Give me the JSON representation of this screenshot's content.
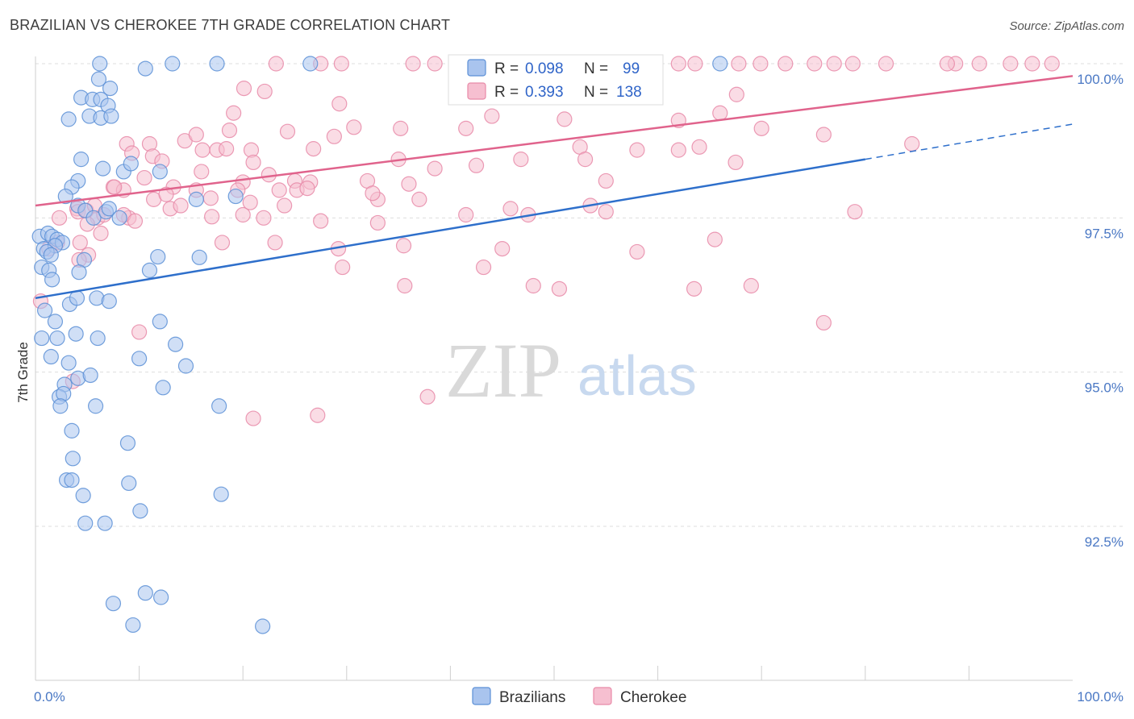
{
  "title": "BRAZILIAN VS CHEROKEE 7TH GRADE CORRELATION CHART",
  "source": "Source: ZipAtlas.com",
  "watermark": {
    "zip": "ZIP",
    "atlas": "atlas"
  },
  "colors": {
    "brazilians_fill": "#a9c4ee",
    "brazilians_stroke": "#5b8fd6",
    "brazilians_line": "#2e6fcb",
    "cherokee_fill": "#f6bfd0",
    "cherokee_stroke": "#e88aa8",
    "cherokee_line": "#e0638c",
    "grid": "#dddddd",
    "tick_text": "#4a78c4"
  },
  "chart_data": {
    "type": "scatter",
    "title": "BRAZILIAN VS CHEROKEE 7TH GRADE CORRELATION CHART",
    "xlabel": "",
    "ylabel": "7th Grade",
    "xlim": [
      0,
      100
    ],
    "ylim": [
      90.0,
      100.3
    ],
    "x_tick_labels": [
      {
        "value": 0,
        "label": "0.0%"
      },
      {
        "value": 100,
        "label": "100.0%"
      }
    ],
    "y_tick_labels": [
      {
        "value": 100.0,
        "label": "100.0%"
      },
      {
        "value": 97.5,
        "label": "97.5%"
      },
      {
        "value": 95.0,
        "label": "95.0%"
      },
      {
        "value": 92.5,
        "label": "92.5%"
      }
    ],
    "grid": true,
    "legend_position": "top-center",
    "legend": [
      {
        "name": "Brazilians",
        "r_label": "R =",
        "r_value": "0.098",
        "n_label": "N =",
        "n_value": "99"
      },
      {
        "name": "Cherokee",
        "r_label": "R =",
        "r_value": "0.393",
        "n_label": "N =",
        "n_value": "138"
      }
    ],
    "series": [
      {
        "name": "Brazilians",
        "trend": {
          "x0": 0,
          "y0": 96.2,
          "x1": 80,
          "y1": 98.45,
          "dashed_to_x": 100,
          "dashed_to_y": 99.02
        },
        "points": [
          [
            6.2,
            100
          ],
          [
            10.6,
            99.92
          ],
          [
            13.2,
            100
          ],
          [
            17.5,
            100
          ],
          [
            26.5,
            100
          ],
          [
            66,
            100
          ],
          [
            6.1,
            99.75
          ],
          [
            7.2,
            99.6
          ],
          [
            4.4,
            99.45
          ],
          [
            5.5,
            99.42
          ],
          [
            6.3,
            99.42
          ],
          [
            7.0,
            99.32
          ],
          [
            3.2,
            99.1
          ],
          [
            5.2,
            99.15
          ],
          [
            6.3,
            99.12
          ],
          [
            7.3,
            99.15
          ],
          [
            4.4,
            98.45
          ],
          [
            6.5,
            98.3
          ],
          [
            8.5,
            98.25
          ],
          [
            9.2,
            98.38
          ],
          [
            12.0,
            98.25
          ],
          [
            4.1,
            98.1
          ],
          [
            3.5,
            98.0
          ],
          [
            2.9,
            97.85
          ],
          [
            4.1,
            97.7
          ],
          [
            4.8,
            97.62
          ],
          [
            5.6,
            97.5
          ],
          [
            6.8,
            97.6
          ],
          [
            7.1,
            97.65
          ],
          [
            8.1,
            97.5
          ],
          [
            15.5,
            97.8
          ],
          [
            19.3,
            97.85
          ],
          [
            0.4,
            97.2
          ],
          [
            1.2,
            97.25
          ],
          [
            1.6,
            97.2
          ],
          [
            2.1,
            97.15
          ],
          [
            2.6,
            97.1
          ],
          [
            0.8,
            97.0
          ],
          [
            1.9,
            97.05
          ],
          [
            1.1,
            96.95
          ],
          [
            1.5,
            96.9
          ],
          [
            4.7,
            96.82
          ],
          [
            11.8,
            96.87
          ],
          [
            15.8,
            96.86
          ],
          [
            0.6,
            96.7
          ],
          [
            1.3,
            96.65
          ],
          [
            1.6,
            96.5
          ],
          [
            4.2,
            96.62
          ],
          [
            11.0,
            96.65
          ],
          [
            3.3,
            96.1
          ],
          [
            4.0,
            96.2
          ],
          [
            5.9,
            96.2
          ],
          [
            7.1,
            96.15
          ],
          [
            0.9,
            96.0
          ],
          [
            1.9,
            95.82
          ],
          [
            12.0,
            95.82
          ],
          [
            0.6,
            95.55
          ],
          [
            2.1,
            95.55
          ],
          [
            3.9,
            95.62
          ],
          [
            6.0,
            95.55
          ],
          [
            13.5,
            95.45
          ],
          [
            1.5,
            95.25
          ],
          [
            3.2,
            95.15
          ],
          [
            10.0,
            95.22
          ],
          [
            14.5,
            95.1
          ],
          [
            2.8,
            94.8
          ],
          [
            4.1,
            94.9
          ],
          [
            5.3,
            94.95
          ],
          [
            12.3,
            94.75
          ],
          [
            2.3,
            94.6
          ],
          [
            2.7,
            94.65
          ],
          [
            2.4,
            94.45
          ],
          [
            5.8,
            94.45
          ],
          [
            17.7,
            94.45
          ],
          [
            3.5,
            94.05
          ],
          [
            8.9,
            93.85
          ],
          [
            3.6,
            93.6
          ],
          [
            3.0,
            93.25
          ],
          [
            3.5,
            93.25
          ],
          [
            9.0,
            93.2
          ],
          [
            4.6,
            93.0
          ],
          [
            17.9,
            93.02
          ],
          [
            10.1,
            92.75
          ],
          [
            4.8,
            92.55
          ],
          [
            6.7,
            92.55
          ],
          [
            10.6,
            91.42
          ],
          [
            12.1,
            91.35
          ],
          [
            7.5,
            91.25
          ],
          [
            9.4,
            90.9
          ],
          [
            21.9,
            90.88
          ]
        ]
      },
      {
        "name": "Cherokee",
        "trend": {
          "x0": 0,
          "y0": 97.7,
          "x1": 100,
          "y1": 99.8
        },
        "points": [
          [
            23.2,
            100
          ],
          [
            27.5,
            100
          ],
          [
            29.5,
            100
          ],
          [
            36.4,
            100
          ],
          [
            38.5,
            100
          ],
          [
            43.7,
            100
          ],
          [
            48.8,
            100
          ],
          [
            51.2,
            100
          ],
          [
            55.6,
            100
          ],
          [
            59.0,
            100
          ],
          [
            62.0,
            100
          ],
          [
            63.6,
            100
          ],
          [
            67.8,
            100
          ],
          [
            69.9,
            100
          ],
          [
            72.3,
            100
          ],
          [
            75.1,
            100
          ],
          [
            77.0,
            100
          ],
          [
            82.0,
            100
          ],
          [
            88.7,
            100
          ],
          [
            91.0,
            100
          ],
          [
            94.0,
            100
          ],
          [
            96.1,
            100
          ],
          [
            98.0,
            100
          ],
          [
            78.8,
            100
          ],
          [
            44.0,
            100
          ],
          [
            87.9,
            100
          ],
          [
            20.1,
            99.6
          ],
          [
            22.1,
            99.55
          ],
          [
            67.6,
            99.5
          ],
          [
            29.3,
            99.35
          ],
          [
            19.1,
            99.2
          ],
          [
            44.0,
            99.15
          ],
          [
            51.0,
            99.1
          ],
          [
            66.0,
            99.2
          ],
          [
            62.0,
            99.08
          ],
          [
            70.0,
            98.95
          ],
          [
            24.3,
            98.9
          ],
          [
            30.7,
            98.97
          ],
          [
            35.2,
            98.95
          ],
          [
            41.5,
            98.95
          ],
          [
            18.7,
            98.92
          ],
          [
            76.0,
            98.85
          ],
          [
            84.5,
            98.7
          ],
          [
            52.5,
            98.65
          ],
          [
            64.0,
            98.65
          ],
          [
            8.8,
            98.7
          ],
          [
            11.0,
            98.7
          ],
          [
            14.4,
            98.75
          ],
          [
            15.5,
            98.85
          ],
          [
            16.1,
            98.6
          ],
          [
            17.5,
            98.6
          ],
          [
            18.4,
            98.62
          ],
          [
            20.8,
            98.6
          ],
          [
            26.8,
            98.62
          ],
          [
            28.8,
            98.82
          ],
          [
            35.0,
            98.45
          ],
          [
            38.5,
            98.3
          ],
          [
            42.5,
            98.35
          ],
          [
            46.8,
            98.45
          ],
          [
            53.0,
            98.45
          ],
          [
            58.0,
            98.6
          ],
          [
            62.0,
            98.6
          ],
          [
            67.5,
            98.4
          ],
          [
            9.3,
            98.55
          ],
          [
            11.3,
            98.5
          ],
          [
            12.2,
            98.42
          ],
          [
            16.0,
            98.25
          ],
          [
            21.0,
            98.4
          ],
          [
            22.5,
            98.2
          ],
          [
            25.0,
            98.1
          ],
          [
            26.5,
            98.08
          ],
          [
            32.0,
            98.1
          ],
          [
            33.0,
            97.8
          ],
          [
            36.0,
            98.05
          ],
          [
            55.0,
            98.1
          ],
          [
            7.5,
            98.0
          ],
          [
            8.5,
            97.95
          ],
          [
            10.5,
            98.15
          ],
          [
            13.3,
            98.0
          ],
          [
            15.5,
            97.95
          ],
          [
            20.0,
            98.08
          ],
          [
            23.5,
            97.95
          ],
          [
            25.2,
            97.95
          ],
          [
            26.2,
            97.98
          ],
          [
            4.0,
            97.65
          ],
          [
            2.3,
            97.5
          ],
          [
            4.1,
            97.6
          ],
          [
            6.0,
            97.5
          ],
          [
            5.0,
            97.4
          ],
          [
            6.6,
            97.55
          ],
          [
            9.0,
            97.5
          ],
          [
            11.4,
            97.8
          ],
          [
            13.0,
            97.65
          ],
          [
            14.0,
            97.7
          ],
          [
            17.0,
            97.52
          ],
          [
            20.0,
            97.55
          ],
          [
            22.0,
            97.5
          ],
          [
            27.5,
            97.45
          ],
          [
            33.0,
            97.42
          ],
          [
            41.5,
            97.55
          ],
          [
            47.5,
            97.55
          ],
          [
            55.0,
            97.6
          ],
          [
            79.0,
            97.6
          ],
          [
            5.1,
            96.9
          ],
          [
            4.2,
            96.82
          ],
          [
            18.0,
            97.1
          ],
          [
            23.1,
            97.1
          ],
          [
            29.2,
            97.0
          ],
          [
            35.5,
            97.05
          ],
          [
            45.0,
            97.0
          ],
          [
            58.0,
            96.95
          ],
          [
            65.5,
            97.15
          ],
          [
            29.6,
            96.7
          ],
          [
            43.2,
            96.7
          ],
          [
            35.6,
            96.4
          ],
          [
            48.0,
            96.4
          ],
          [
            50.5,
            96.35
          ],
          [
            63.5,
            96.35
          ],
          [
            69.0,
            96.4
          ],
          [
            76.0,
            95.8
          ],
          [
            0.5,
            96.15
          ],
          [
            10.0,
            95.65
          ],
          [
            37.8,
            94.6
          ],
          [
            27.2,
            94.3
          ],
          [
            21.0,
            94.25
          ],
          [
            3.6,
            94.85
          ],
          [
            4.3,
            97.1
          ],
          [
            2.1,
            97.1
          ],
          [
            1.3,
            97.0
          ],
          [
            8.5,
            97.55
          ],
          [
            7.6,
            98.0
          ],
          [
            6.3,
            97.25
          ],
          [
            32.5,
            97.9
          ],
          [
            20.7,
            97.75
          ],
          [
            37.0,
            97.8
          ],
          [
            16.9,
            97.82
          ],
          [
            19.5,
            97.95
          ],
          [
            24.0,
            97.7
          ],
          [
            4.9,
            97.62
          ],
          [
            5.7,
            97.7
          ],
          [
            9.6,
            97.45
          ],
          [
            12.6,
            97.88
          ],
          [
            45.8,
            97.65
          ],
          [
            53.5,
            97.7
          ]
        ]
      }
    ]
  }
}
